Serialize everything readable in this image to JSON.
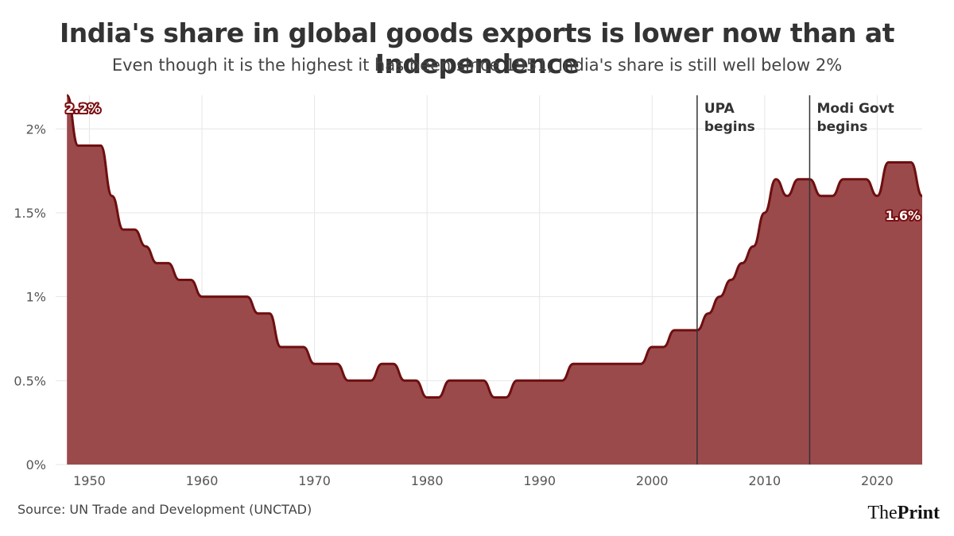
{
  "header": {
    "title": "India's share in global goods exports is lower now than at Independence",
    "subtitle": "Even though it is the highest it has been since 1951, India's share is still well below 2%"
  },
  "footer": {
    "source": "Source: UN Trade and Development (UNCTAD)",
    "logo_part1": "The",
    "logo_part2": "Print"
  },
  "colors": {
    "area_fill": "#9b4a4c",
    "line": "#6e0f10",
    "grid": "#e6e6e6",
    "event_line": "#333333",
    "label_bg": "#7a0e10"
  },
  "chart_data": {
    "type": "area",
    "title": "India's share in global goods exports is lower now than at Independence",
    "subtitle": "Even though it is the highest it has been since 1951, India's share is still well below 2%",
    "xlabel": "",
    "ylabel": "",
    "xlim": [
      1947,
      2024
    ],
    "ylim": [
      0,
      2.2
    ],
    "x_ticks": [
      1950,
      1960,
      1970,
      1980,
      1990,
      2000,
      2010,
      2020
    ],
    "y_ticks": [
      {
        "value": 0,
        "label": "0%"
      },
      {
        "value": 0.5,
        "label": "0.5%"
      },
      {
        "value": 1,
        "label": "1%"
      },
      {
        "value": 1.5,
        "label": "1.5%"
      },
      {
        "value": 2,
        "label": "2%"
      }
    ],
    "grid": true,
    "series": [
      {
        "x": [
          1948,
          1949,
          1950,
          1951,
          1952,
          1953,
          1954,
          1955,
          1956,
          1957,
          1958,
          1959,
          1960,
          1961,
          1962,
          1963,
          1964,
          1965,
          1966,
          1967,
          1968,
          1969,
          1970,
          1971,
          1972,
          1973,
          1974,
          1975,
          1976,
          1977,
          1978,
          1979,
          1980,
          1981,
          1982,
          1983,
          1984,
          1985,
          1986,
          1987,
          1988,
          1989,
          1990,
          1991,
          1992,
          1993,
          1994,
          1995,
          1996,
          1997,
          1998,
          1999,
          2000,
          2001,
          2002,
          2003,
          2004,
          2005,
          2006,
          2007,
          2008,
          2009,
          2010,
          2011,
          2012,
          2013,
          2014,
          2015,
          2016,
          2017,
          2018,
          2019,
          2020,
          2021,
          2022,
          2023,
          2024
        ],
        "y": [
          2.2,
          1.9,
          1.9,
          1.9,
          1.6,
          1.4,
          1.4,
          1.3,
          1.2,
          1.2,
          1.1,
          1.1,
          1.0,
          1.0,
          1.0,
          1.0,
          1.0,
          0.9,
          0.9,
          0.7,
          0.7,
          0.7,
          0.6,
          0.6,
          0.6,
          0.5,
          0.5,
          0.5,
          0.6,
          0.6,
          0.5,
          0.5,
          0.4,
          0.4,
          0.5,
          0.5,
          0.5,
          0.5,
          0.4,
          0.4,
          0.5,
          0.5,
          0.5,
          0.5,
          0.5,
          0.6,
          0.6,
          0.6,
          0.6,
          0.6,
          0.6,
          0.6,
          0.7,
          0.7,
          0.8,
          0.8,
          0.8,
          0.9,
          1.0,
          1.1,
          1.2,
          1.3,
          1.5,
          1.7,
          1.6,
          1.7,
          1.7,
          1.6,
          1.6,
          1.7,
          1.7,
          1.7,
          1.6,
          1.8,
          1.8,
          1.8,
          1.6
        ]
      }
    ],
    "annotations": [
      {
        "x": 2004,
        "label_line1": "UPA",
        "label_line2": "begins"
      },
      {
        "x": 2014,
        "label_line1": "Modi Govt",
        "label_line2": "begins"
      }
    ],
    "point_labels": [
      {
        "x": 1948,
        "y": 2.2,
        "label": "2.2%"
      },
      {
        "x": 2024,
        "y": 1.6,
        "label": "1.6%"
      }
    ]
  }
}
